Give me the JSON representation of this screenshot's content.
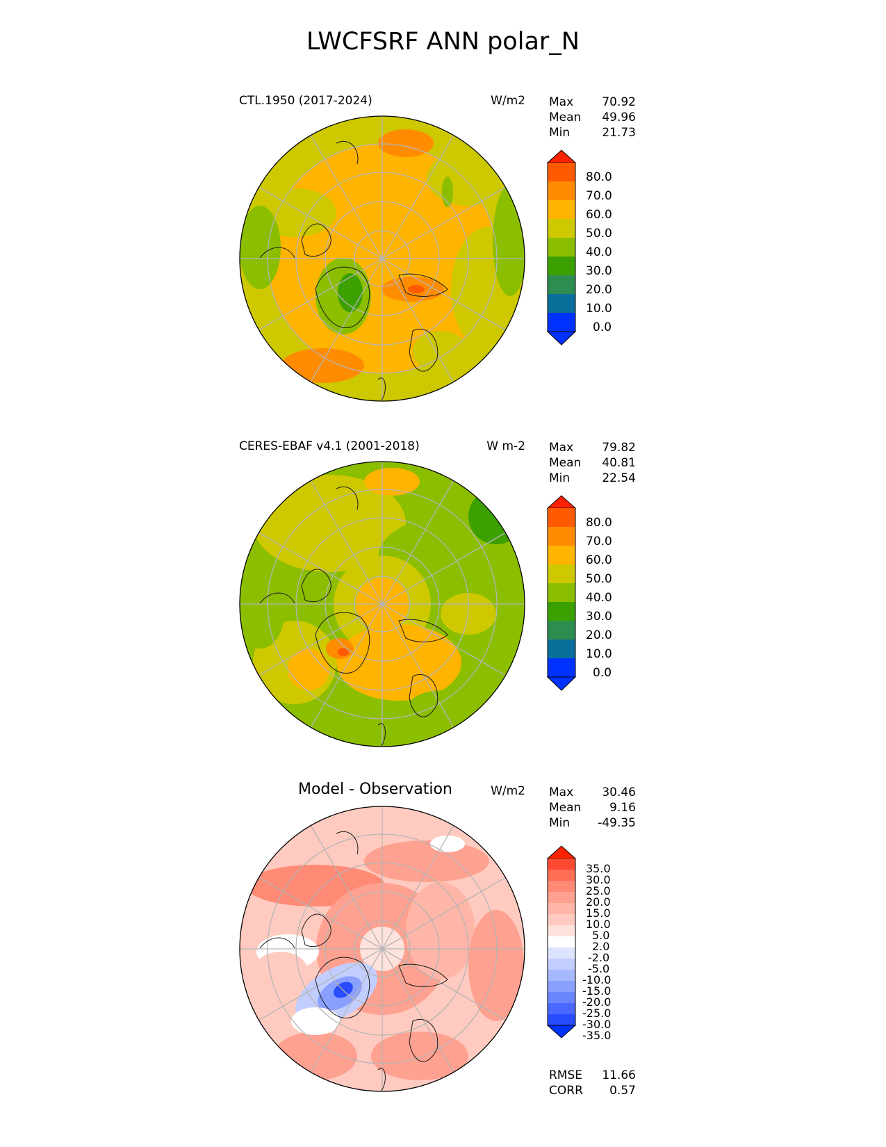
{
  "title": "LWCFSRF ANN polar_N",
  "panels": [
    {
      "title": "CTL.1950 (2017-2024)",
      "units": "W/m2",
      "stats": [
        {
          "label": "Max",
          "value": "70.92"
        },
        {
          "label": "Mean",
          "value": "49.96"
        },
        {
          "label": "Min",
          "value": "21.73"
        }
      ],
      "colorbar": {
        "labels": [
          "80.0",
          "70.0",
          "60.0",
          "50.0",
          "40.0",
          "30.0",
          "20.0",
          "10.0",
          "0.0"
        ],
        "colors": [
          "#ff0000",
          "#ff5a00",
          "#ff8c00",
          "#ffb400",
          "#cdc800",
          "#8cbe00",
          "#3ca000",
          "#2d8c50",
          "#0a6e9b",
          "#0032ff"
        ]
      }
    },
    {
      "title": "CERES-EBAF v4.1 (2001-2018)",
      "units": "W m-2",
      "stats": [
        {
          "label": "Max",
          "value": "79.82"
        },
        {
          "label": "Mean",
          "value": "40.81"
        },
        {
          "label": "Min",
          "value": "22.54"
        }
      ],
      "colorbar": {
        "labels": [
          "80.0",
          "70.0",
          "60.0",
          "50.0",
          "40.0",
          "30.0",
          "20.0",
          "10.0",
          "0.0"
        ],
        "colors": [
          "#ff0000",
          "#ff5a00",
          "#ff8c00",
          "#ffb400",
          "#cdc800",
          "#8cbe00",
          "#3ca000",
          "#2d8c50",
          "#0a6e9b",
          "#0032ff"
        ]
      }
    },
    {
      "title": "Model - Observation",
      "units": "W/m2",
      "stats": [
        {
          "label": "Max",
          "value": "30.46"
        },
        {
          "label": "Mean",
          "value": "9.16"
        },
        {
          "label": "Min",
          "value": "-49.35"
        }
      ],
      "colorbar": {
        "labels": [
          "35.0",
          "30.0",
          "25.0",
          "20.0",
          "15.0",
          "10.0",
          "5.0",
          "2.0",
          "-2.0",
          "-5.0",
          "-10.0",
          "-15.0",
          "-20.0",
          "-25.0",
          "-30.0",
          "-35.0"
        ],
        "colors": [
          "#ff2200",
          "#ff4a33",
          "#ff6e55",
          "#ff8a75",
          "#ffa190",
          "#ffb6a8",
          "#ffcbc0",
          "#ffe2dc",
          "#ffffff",
          "#dde4ff",
          "#c2ceff",
          "#a6b8ff",
          "#8aa0ff",
          "#6c86ff",
          "#4a68ff",
          "#2a4cff",
          "#0032ff"
        ]
      },
      "footer": [
        {
          "label": "RMSE",
          "value": "11.66"
        },
        {
          "label": "CORR",
          "value": "0.57"
        }
      ]
    }
  ]
}
